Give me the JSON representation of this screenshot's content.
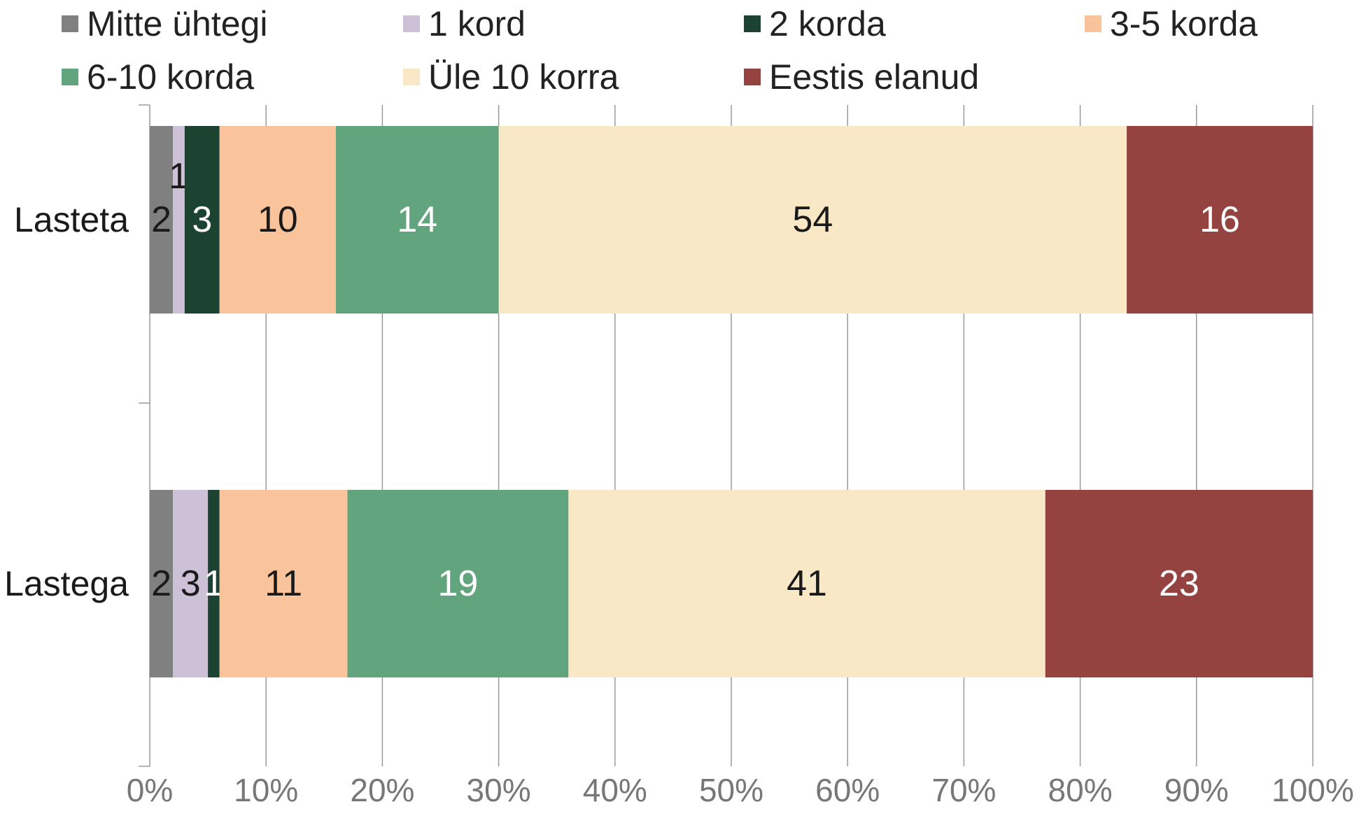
{
  "chart_data": {
    "type": "bar",
    "orientation": "horizontal",
    "stacked": true,
    "normalized_percent": true,
    "categories": [
      "Lasteta",
      "Lastega"
    ],
    "series": [
      {
        "name": "Mitte ühtegi",
        "color": "#808080",
        "values": [
          2,
          2
        ]
      },
      {
        "name": "1 kord",
        "color": "#CDC1D8",
        "values": [
          1,
          3
        ]
      },
      {
        "name": "2 korda",
        "color": "#1C4232",
        "values": [
          3,
          1
        ]
      },
      {
        "name": "3-5 korda",
        "color": "#F9C49B",
        "values": [
          10,
          11
        ]
      },
      {
        "name": "6-10 korda",
        "color": "#62A47D",
        "values": [
          14,
          19
        ]
      },
      {
        "name": "Üle 10 korra",
        "color": "#F9E8C5",
        "values": [
          54,
          41
        ]
      },
      {
        "name": "Eestis elanud",
        "color": "#944341",
        "values": [
          16,
          23
        ]
      }
    ],
    "xlim": [
      0,
      100
    ],
    "xticks": [
      "0%",
      "10%",
      "20%",
      "30%",
      "40%",
      "50%",
      "60%",
      "70%",
      "80%",
      "90%",
      "100%"
    ],
    "grid": true,
    "legend_position": "top"
  }
}
